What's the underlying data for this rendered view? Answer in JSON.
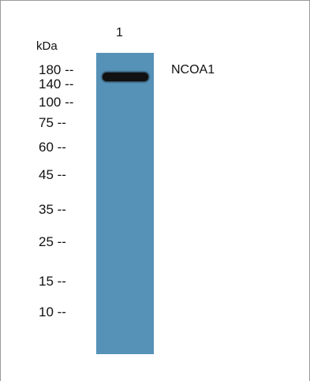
{
  "unit_label": "kDa",
  "lane_number": "1",
  "band_label": "NCOA1",
  "markers": [
    "180 --",
    "140 --",
    "100 --",
    "75 --",
    "60 --",
    "45 --",
    "35 --",
    "25 --",
    "15 --",
    "10 --"
  ],
  "colors": {
    "lane": "#5692b8",
    "band": "#111111",
    "border": "#9a9a9a"
  }
}
